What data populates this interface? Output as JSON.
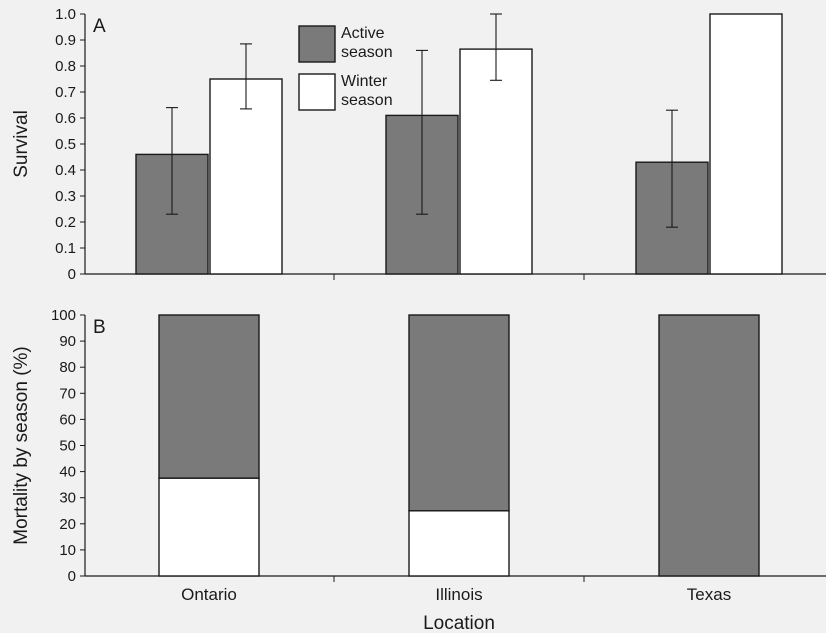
{
  "chart_data": [
    {
      "panel": "A",
      "type": "bar",
      "ylabel": "Survival",
      "ylim": [
        0,
        1.0
      ],
      "yticks": [
        "0",
        "0.1",
        "0.2",
        "0.3",
        "0.4",
        "0.5",
        "0.6",
        "0.7",
        "0.8",
        "0.9",
        "1.0"
      ],
      "categories": [
        "Ontario",
        "Illinois",
        "Texas"
      ],
      "series": [
        {
          "name": "Active season",
          "color": "#7a7a7a",
          "values": [
            0.46,
            0.61,
            0.43
          ],
          "error_low": [
            0.23,
            0.23,
            0.18
          ],
          "error_high": [
            0.64,
            0.86,
            0.63
          ]
        },
        {
          "name": "Winter season",
          "color": "#ffffff",
          "values": [
            0.75,
            0.865,
            1.0
          ],
          "error_low": [
            0.635,
            0.745,
            null
          ],
          "error_high": [
            0.885,
            1.0,
            null
          ]
        }
      ],
      "legend": {
        "placement": "top-center",
        "entries": [
          {
            "line1": "Active",
            "line2": "season",
            "color": "#7a7a7a"
          },
          {
            "line1": "Winter",
            "line2": "season",
            "color": "#ffffff"
          }
        ]
      }
    },
    {
      "panel": "B",
      "type": "bar",
      "stacked": true,
      "ylabel": "Mortality by season (%)",
      "xlabel": "Location",
      "ylim": [
        0,
        100
      ],
      "yticks": [
        "0",
        "10",
        "20",
        "30",
        "40",
        "50",
        "60",
        "70",
        "80",
        "90",
        "100"
      ],
      "categories": [
        "Ontario",
        "Illinois",
        "Texas"
      ],
      "series": [
        {
          "name": "Winter season",
          "color": "#ffffff",
          "values": [
            37.5,
            25,
            0
          ]
        },
        {
          "name": "Active season",
          "color": "#7a7a7a",
          "values": [
            62.5,
            75,
            100
          ]
        }
      ]
    }
  ]
}
